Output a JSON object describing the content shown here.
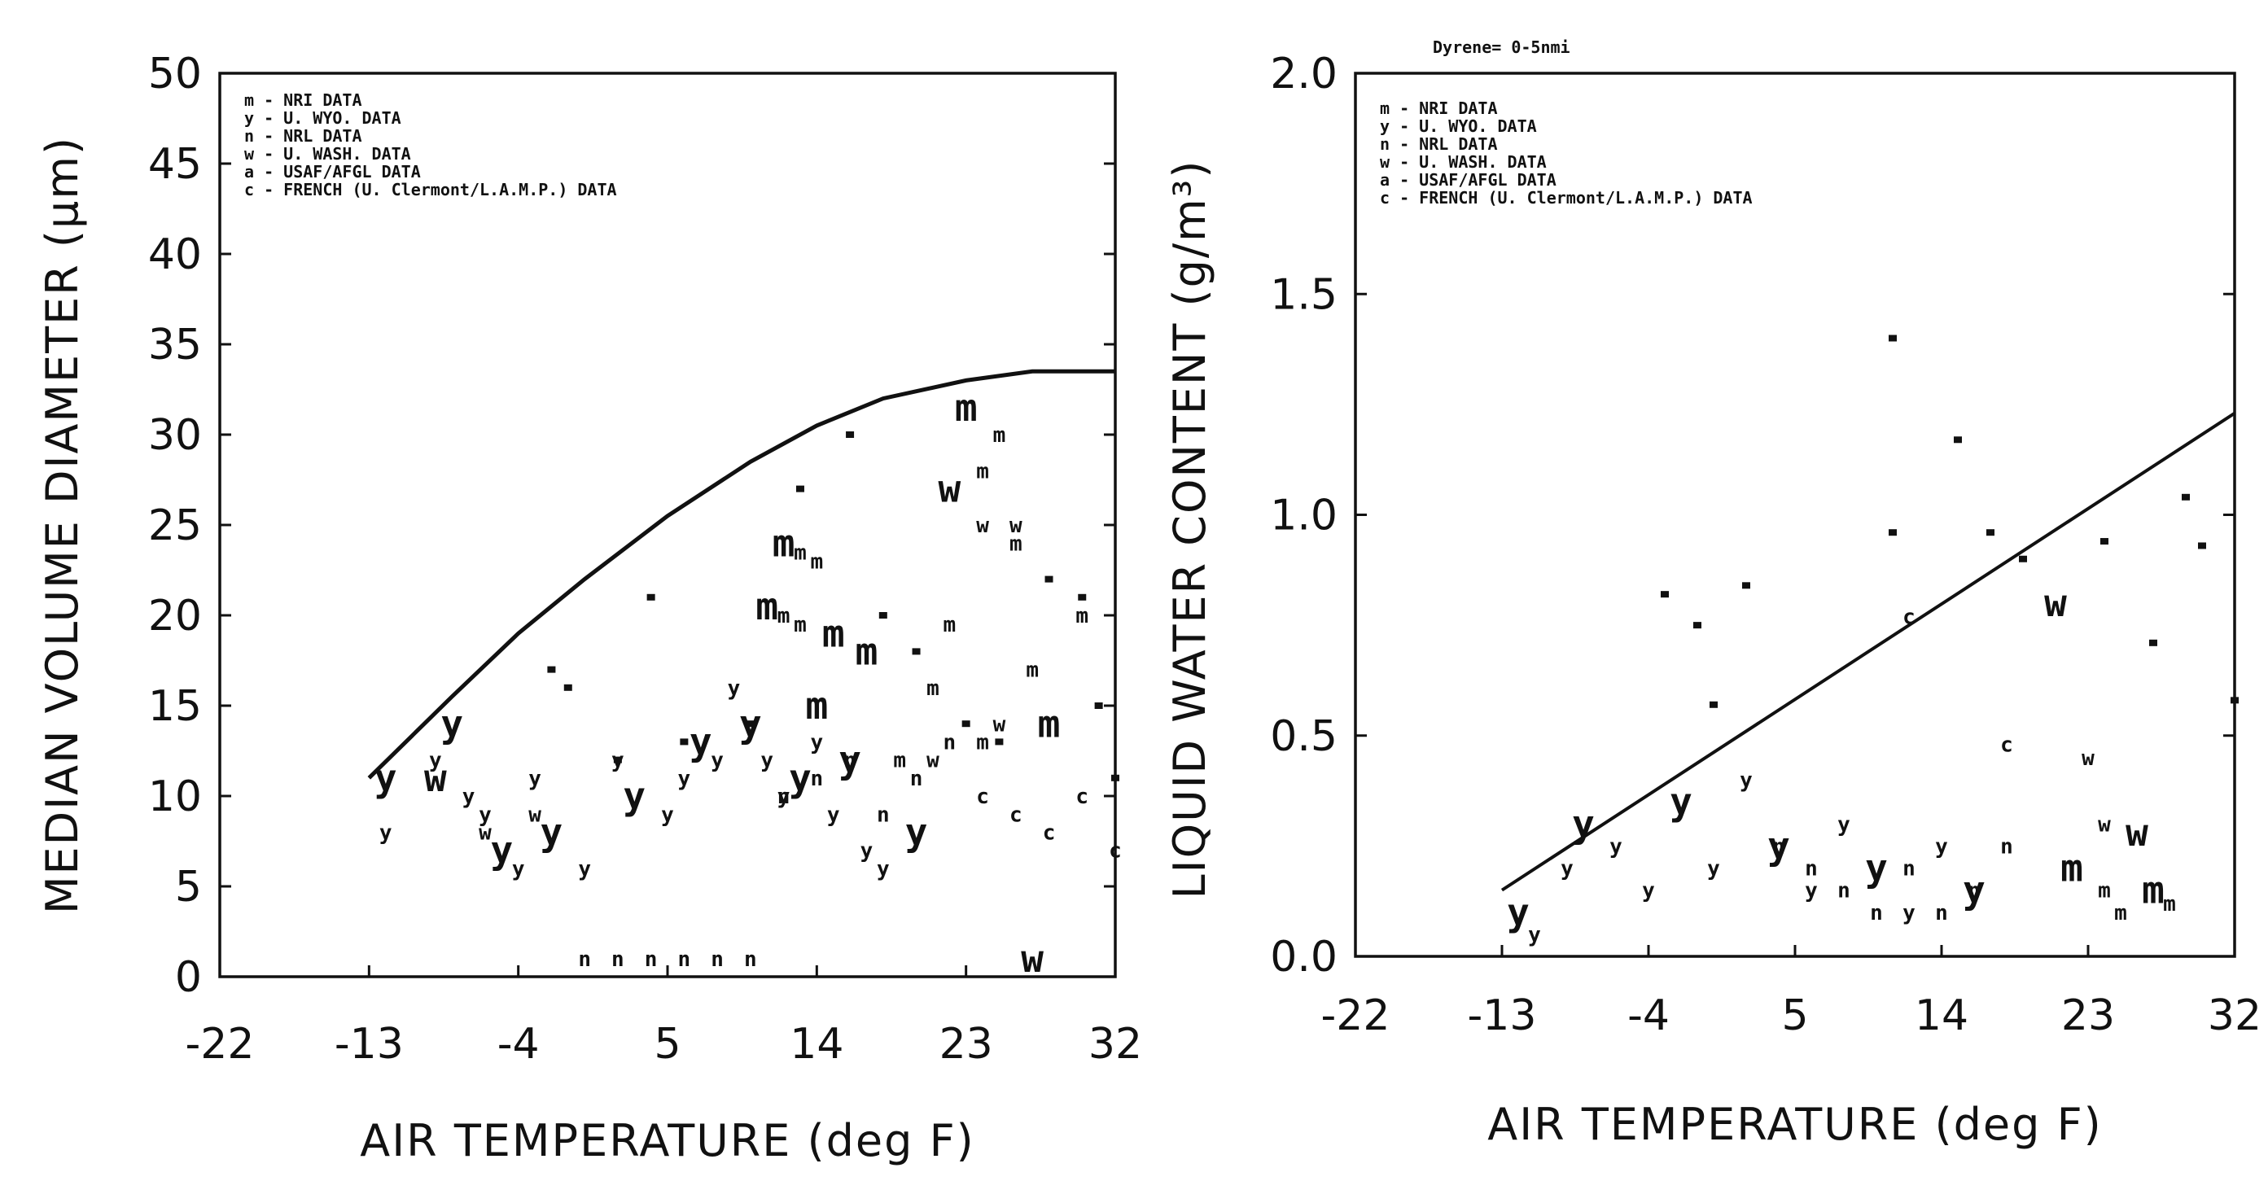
{
  "chart_data": [
    {
      "type": "scatter",
      "title": "",
      "xlabel": "AIR TEMPERATURE (deg F)",
      "ylabel": "MEDIAN VOLUME DIAMETER (µm)",
      "xlim": [
        -22,
        32
      ],
      "ylim": [
        0,
        50
      ],
      "xticks": [
        "-22",
        "-13",
        "-4",
        "5",
        "14",
        "23",
        "32"
      ],
      "yticks": [
        "0",
        "5",
        "10",
        "15",
        "20",
        "25",
        "30",
        "35",
        "40",
        "45",
        "50"
      ],
      "grid": false,
      "legend_position": "top-left",
      "legend": [
        "m - NRI DATA",
        "y - U. WYO. DATA",
        "n - NRL DATA",
        "w - U. WASH. DATA",
        "a - USAF/AFGL DATA",
        "c - FRENCH (U. Clermont/L.A.M.P.) DATA"
      ],
      "envelope_curve": {
        "x": [
          -13,
          -8,
          -4,
          0,
          5,
          10,
          14,
          18,
          23,
          27,
          32
        ],
        "y": [
          11,
          15.5,
          19,
          22,
          25.5,
          28.5,
          30.5,
          32,
          33,
          33.5,
          33.5
        ]
      },
      "series": [
        {
          "name": "m - NRI DATA",
          "x": [
            23,
            24,
            25,
            12,
            13,
            14,
            11,
            12,
            13,
            15,
            22,
            26,
            17,
            21,
            27,
            14,
            19,
            24,
            28,
            30
          ],
          "y": [
            31.5,
            28,
            30,
            24,
            23.5,
            23,
            20.5,
            20,
            19.5,
            19,
            19.5,
            24,
            18,
            16,
            17,
            15,
            12,
            13,
            14,
            20
          ]
        },
        {
          "name": "y - U. WYO. DATA",
          "x": [
            -12,
            -12,
            -9,
            -8,
            -7,
            -6,
            -5,
            -4,
            -3,
            -2,
            0,
            2,
            3,
            5,
            6,
            7,
            8,
            9,
            10,
            11,
            12,
            13,
            14,
            15,
            16,
            17,
            18,
            20
          ],
          "y": [
            11,
            8,
            12,
            14,
            10,
            9,
            7,
            6,
            11,
            8,
            6,
            12,
            10,
            9,
            11,
            13,
            12,
            16,
            14,
            12,
            10,
            11,
            13,
            9,
            12,
            7,
            6,
            8
          ]
        },
        {
          "name": "n - NRL DATA",
          "x": [
            0,
            2,
            4,
            6,
            8,
            10,
            12,
            14,
            16,
            18,
            20,
            22
          ],
          "y": [
            1,
            1,
            1,
            1,
            1,
            1,
            10,
            11,
            12,
            9,
            11,
            13
          ]
        },
        {
          "name": "w - U. WASH. DATA",
          "x": [
            -9,
            -6,
            -3,
            22,
            24,
            26,
            27,
            21,
            25
          ],
          "y": [
            11,
            8,
            9,
            27,
            25,
            25,
            1,
            12,
            14
          ]
        },
        {
          "name": "a - USAF/AFGL DATA",
          "x": [
            -2,
            -1,
            2,
            4,
            6,
            10,
            13,
            16,
            18,
            20,
            23,
            25,
            28,
            30,
            31,
            32
          ],
          "y": [
            17,
            16,
            12,
            21,
            13,
            14,
            27,
            30,
            20,
            18,
            14,
            13,
            22,
            21,
            15,
            11
          ]
        },
        {
          "name": "c - FRENCH (U. Clermont/L.A.M.P.) DATA",
          "x": [
            24,
            26,
            28,
            30,
            32
          ],
          "y": [
            10,
            9,
            8,
            10,
            7
          ]
        }
      ]
    },
    {
      "type": "scatter",
      "title": "Dyrene= 0-5nmi",
      "xlabel": "AIR TEMPERATURE (deg F)",
      "ylabel": "LIQUID WATER CONTENT (g/m³)",
      "xlim": [
        -22,
        32
      ],
      "ylim": [
        0,
        2
      ],
      "xticks": [
        "-22",
        "-13",
        "-4",
        "5",
        "14",
        "23",
        "32"
      ],
      "yticks": [
        "0.0",
        "0.5",
        "1.0",
        "1.5",
        "2.0"
      ],
      "grid": false,
      "legend_position": "top-left",
      "legend": [
        "m - NRI DATA",
        "y - U. WYO. DATA",
        "n - NRL DATA",
        "w - U. WASH. DATA",
        "a - USAF/AFGL DATA",
        "c - FRENCH (U. Clermont/L.A.M.P.) DATA"
      ],
      "envelope_line": {
        "x": [
          -13,
          32
        ],
        "y": [
          0.15,
          1.23
        ]
      },
      "series": [
        {
          "name": "m - NRI DATA",
          "x": [
            22,
            24,
            25,
            27,
            28
          ],
          "y": [
            0.2,
            0.15,
            0.1,
            0.15,
            0.12
          ]
        },
        {
          "name": "y - U. WYO. DATA",
          "x": [
            -12,
            -11,
            -9,
            -8,
            -6,
            -4,
            -2,
            0,
            2,
            4,
            6,
            8,
            10,
            12,
            14,
            16
          ],
          "y": [
            0.1,
            0.05,
            0.2,
            0.3,
            0.25,
            0.15,
            0.35,
            0.2,
            0.4,
            0.25,
            0.15,
            0.3,
            0.2,
            0.1,
            0.25,
            0.15
          ]
        },
        {
          "name": "n - NRL DATA",
          "x": [
            4,
            6,
            8,
            10,
            12,
            14,
            16,
            18
          ],
          "y": [
            0.25,
            0.2,
            0.15,
            0.1,
            0.2,
            0.1,
            0.15,
            0.25
          ]
        },
        {
          "name": "w - U. WASH. DATA",
          "x": [
            21,
            23,
            24,
            26
          ],
          "y": [
            0.8,
            0.45,
            0.3,
            0.28
          ]
        },
        {
          "name": "a - USAF/AFGL DATA",
          "x": [
            -3,
            -1,
            0,
            2,
            11,
            11,
            15,
            17,
            19,
            24,
            27,
            29,
            30,
            32
          ],
          "y": [
            0.82,
            0.75,
            0.57,
            0.84,
            1.4,
            0.96,
            1.17,
            0.96,
            0.9,
            0.94,
            0.71,
            1.04,
            0.93,
            0.58
          ]
        },
        {
          "name": "c - FRENCH (U. Clermont/L.A.M.P.) DATA",
          "x": [
            12,
            18
          ],
          "y": [
            0.77,
            0.48
          ]
        }
      ]
    }
  ]
}
